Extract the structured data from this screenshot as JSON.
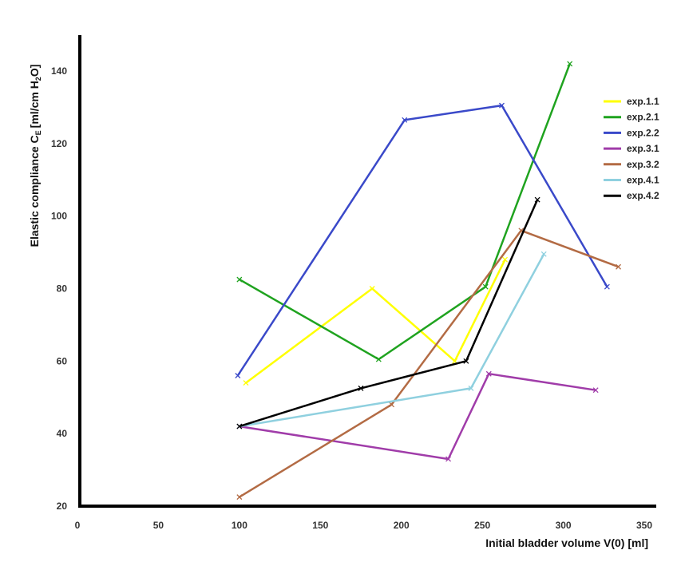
{
  "chart_data": {
    "type": "line",
    "xlabel": "Initial bladder volume V(0) [ml]",
    "ylabel": "Elastic compliance C",
    "ylabel_sub": "E",
    "ylabel_unit_pre": "[ml/cm H",
    "ylabel_unit_sub": "2",
    "ylabel_unit_post": "O]",
    "xlim": [
      0,
      350
    ],
    "ylim": [
      20,
      140
    ],
    "xticks": [
      0,
      50,
      100,
      150,
      200,
      250,
      300,
      350
    ],
    "yticks": [
      20,
      40,
      60,
      80,
      100,
      120,
      140
    ],
    "grid": false,
    "legend_position": "top-right",
    "series": [
      {
        "name": "exp.1.1",
        "color": "#ffff00",
        "x": [
          104,
          182,
          233,
          264
        ],
        "y": [
          54,
          80,
          60,
          88
        ]
      },
      {
        "name": "exp.2.1",
        "color": "#1fa31f",
        "x": [
          100,
          186,
          252,
          304
        ],
        "y": [
          82.5,
          60.5,
          80.5,
          142
        ]
      },
      {
        "name": "exp.2.2",
        "color": "#3a49c9",
        "x": [
          99,
          202,
          262,
          327
        ],
        "y": [
          56,
          126.5,
          130.5,
          80.5
        ]
      },
      {
        "name": "exp.3.1",
        "color": "#a03ca9",
        "x": [
          100,
          229,
          254,
          320
        ],
        "y": [
          42,
          33,
          56.5,
          52
        ]
      },
      {
        "name": "exp.3.2",
        "color": "#b36b44",
        "x": [
          100,
          194,
          274,
          334
        ],
        "y": [
          22.5,
          48,
          96,
          86
        ]
      },
      {
        "name": "exp.4.1",
        "color": "#8fd0df",
        "x": [
          100,
          243,
          288
        ],
        "y": [
          42,
          52.5,
          89.5
        ]
      },
      {
        "name": "exp.4.2",
        "color": "#000000",
        "x": [
          100,
          175,
          240,
          284
        ],
        "y": [
          42,
          52.5,
          60,
          104.5
        ]
      }
    ]
  }
}
